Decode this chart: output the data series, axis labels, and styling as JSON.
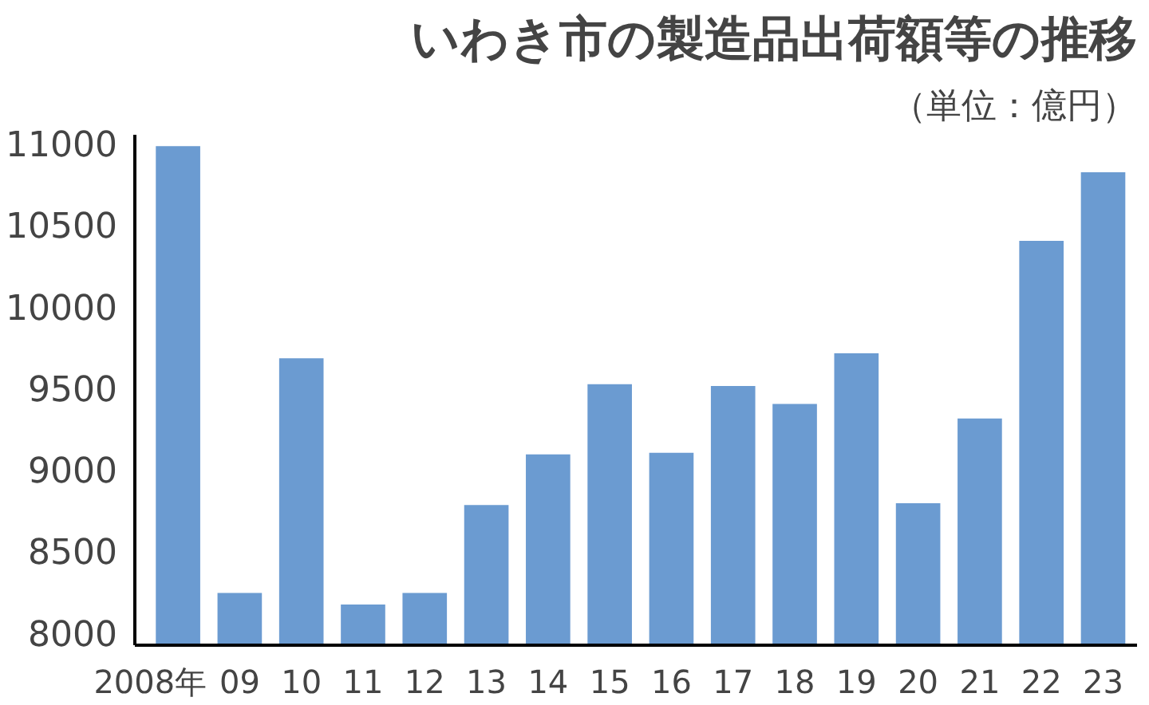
{
  "chart_data": {
    "type": "bar",
    "title": "いわき市の製造品出荷額等の推移",
    "annotations": [
      "（単位：億円）"
    ],
    "categories": [
      "2008年",
      "09",
      "10",
      "11",
      "12",
      "13",
      "14",
      "15",
      "16",
      "17",
      "18",
      "19",
      "20",
      "21",
      "22",
      "23"
    ],
    "values": [
      10980,
      8240,
      9680,
      8170,
      8240,
      8780,
      9090,
      9520,
      9100,
      9510,
      9400,
      9710,
      8790,
      9310,
      10400,
      10820
    ],
    "color": "#6b9bd1",
    "ylim": [
      7920,
      11050
    ],
    "yticks": [
      8000,
      8500,
      9000,
      9500,
      10000,
      10500,
      11000
    ],
    "grid": false
  }
}
